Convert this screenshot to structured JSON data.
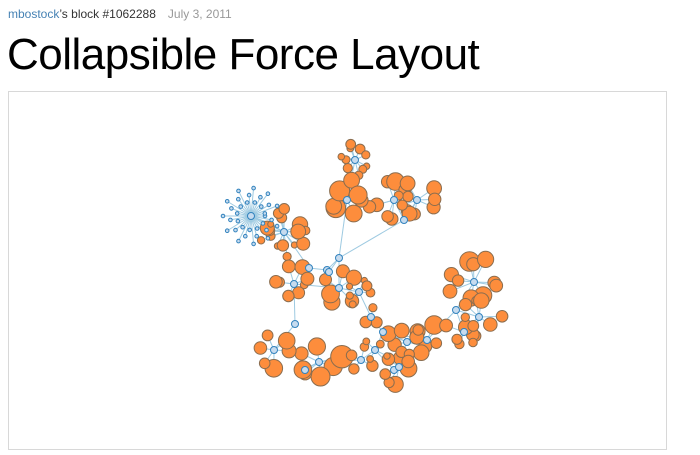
{
  "header": {
    "author": "mbostock",
    "block_text": "’s block #1062288",
    "date": "July 3, 2011"
  },
  "title": "Collapsible Force Layout",
  "colors": {
    "link": "#9ecae1",
    "internal_node": "#c6dbef",
    "internal_node_stroke": "#3182bd",
    "leaf_node": "#fd8d3c",
    "collapsed_node": "#3182bd"
  }
}
